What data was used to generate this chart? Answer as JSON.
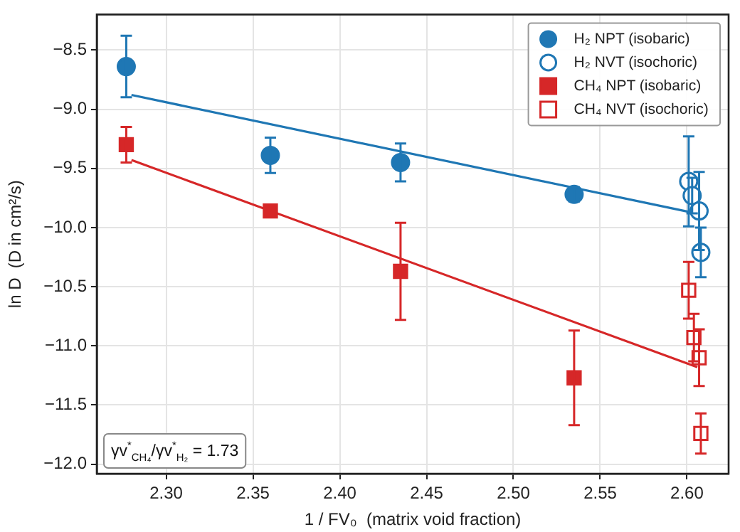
{
  "chart_data": {
    "type": "scatter",
    "xlabel": "1 / FV₀  (matrix void fraction)",
    "ylabel": "ln D  (D in cm²/s)",
    "xlim": [
      2.26,
      2.624
    ],
    "ylim": [
      -12.08,
      -8.2
    ],
    "xticks": [
      {
        "value": 2.3,
        "label": "2.30"
      },
      {
        "value": 2.35,
        "label": "2.35"
      },
      {
        "value": 2.4,
        "label": "2.40"
      },
      {
        "value": 2.45,
        "label": "2.45"
      },
      {
        "value": 2.5,
        "label": "2.50"
      },
      {
        "value": 2.55,
        "label": "2.55"
      },
      {
        "value": 2.6,
        "label": "2.60"
      }
    ],
    "yticks": [
      {
        "value": -12,
        "label": "−12.0"
      },
      {
        "value": -11.5,
        "label": "−11.5"
      },
      {
        "value": -11,
        "label": "−11.0"
      },
      {
        "value": -10.5,
        "label": "−10.5"
      },
      {
        "value": -10,
        "label": "−10.0"
      },
      {
        "value": -9.5,
        "label": "−9.5"
      },
      {
        "value": -9,
        "label": "−9.0"
      },
      {
        "value": -8.5,
        "label": "−8.5"
      }
    ],
    "grid": true,
    "legend": "top right",
    "annotations": [
      "γv$^{*}$$_{CH₄}$/γv$^{*}$$_{H₂}$ = 1.73"
    ],
    "series": [
      {
        "name": "H₂ NPT (isobaric)",
        "type": "scatter",
        "marker": "circle",
        "color": "#1f77b4",
        "x": [
          2.277,
          2.36,
          2.435,
          2.535
        ],
        "values": [
          -8.64,
          -9.39,
          -9.45,
          -9.72
        ],
        "errors": [
          0.26,
          0.15,
          0.16,
          0.06
        ]
      },
      {
        "name": "H₂ NVT (isochoric)",
        "type": "scatter",
        "marker": "circle",
        "color": "#1f77b4",
        "x": [
          2.601,
          2.603,
          2.607,
          2.608
        ],
        "values": [
          -9.61,
          -9.73,
          -9.86,
          -10.21
        ],
        "errors": [
          0.38,
          0.15,
          0.33,
          0.21
        ]
      },
      {
        "name": "CH₄ NPT (isobaric)",
        "type": "scatter",
        "marker": "square",
        "color": "#d62728",
        "x": [
          2.277,
          2.36,
          2.435,
          2.535
        ],
        "values": [
          -9.3,
          -9.86,
          -10.37,
          -11.27
        ],
        "errors": [
          0.15,
          null,
          0.41,
          0.4
        ]
      },
      {
        "name": "CH₄ NVT (isochoric)",
        "type": "scatter",
        "marker": "square",
        "color": "#d62728",
        "x": [
          2.601,
          2.604,
          2.607,
          2.608
        ],
        "values": [
          -10.53,
          -10.93,
          -11.1,
          -11.74
        ],
        "errors": [
          0.24,
          0.2,
          0.24,
          0.17
        ]
      },
      {
        "type": "line",
        "marker": "none",
        "color": "#1f77b4",
        "x": [
          2.28,
          2.605
        ],
        "values": [
          -8.88,
          -9.88
        ]
      },
      {
        "type": "line",
        "marker": "none",
        "color": "#d62728",
        "x": [
          2.28,
          2.606
        ],
        "values": [
          -9.43,
          -11.18
        ]
      }
    ]
  }
}
